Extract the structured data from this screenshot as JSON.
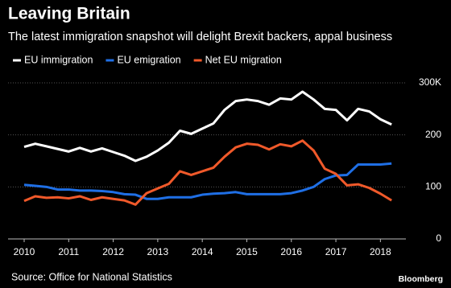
{
  "chart_data": {
    "type": "line",
    "title": "Leaving Britain",
    "subtitle": "The latest immigration snapshot will delight Brexit backers, appal business",
    "source": "Source: Office for National Statistics",
    "brand": "Bloomberg",
    "x": [
      2010,
      2010.25,
      2010.5,
      2010.75,
      2011,
      2011.25,
      2011.5,
      2011.75,
      2012,
      2012.25,
      2012.5,
      2012.75,
      2013,
      2013.25,
      2013.5,
      2013.75,
      2014,
      2014.25,
      2014.5,
      2014.75,
      2015,
      2015.25,
      2015.5,
      2015.75,
      2016,
      2016.25,
      2016.5,
      2016.75,
      2017,
      2017.25,
      2017.5,
      2017.75,
      2018,
      2018.25
    ],
    "series": [
      {
        "name": "EU immigration",
        "color": "#ffffff",
        "values": [
          177,
          183,
          178,
          173,
          168,
          175,
          168,
          174,
          167,
          160,
          150,
          158,
          170,
          185,
          208,
          202,
          212,
          222,
          248,
          265,
          268,
          265,
          258,
          270,
          268,
          283,
          268,
          250,
          248,
          228,
          250,
          245,
          230,
          220
        ]
      },
      {
        "name": "EU emigration",
        "color": "#1f6fe5",
        "values": [
          104,
          102,
          100,
          95,
          95,
          93,
          93,
          92,
          90,
          86,
          85,
          77,
          77,
          80,
          80,
          80,
          85,
          87,
          88,
          90,
          86,
          86,
          86,
          86,
          88,
          93,
          100,
          115,
          122,
          123,
          143,
          143,
          143,
          145
        ]
      },
      {
        "name": "Net EU migration",
        "color": "#f0592a",
        "values": [
          73,
          82,
          79,
          80,
          78,
          82,
          75,
          80,
          77,
          74,
          66,
          88,
          97,
          106,
          130,
          123,
          130,
          137,
          158,
          176,
          183,
          181,
          172,
          182,
          178,
          189,
          170,
          135,
          125,
          103,
          105,
          98,
          87,
          74
        ]
      }
    ],
    "xlim": [
      2010,
      2018.5
    ],
    "xticks": [
      2010,
      2011,
      2012,
      2013,
      2014,
      2015,
      2016,
      2017,
      2018
    ],
    "ylim": [
      0,
      300
    ],
    "yticks": [
      0,
      100,
      200,
      {
        "value": 300,
        "label": "300K"
      }
    ],
    "grid": true
  }
}
